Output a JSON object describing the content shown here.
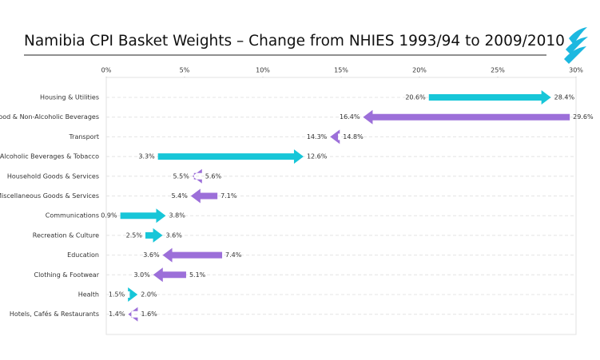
{
  "chart_data": {
    "type": "arrow",
    "title": "Namibia CPI Basket Weights – Change from NHIES 1993/94 to 2009/2010",
    "categories": [
      "Housing & Utilities",
      "Food & Non-Alcoholic Beverages",
      "Transport",
      "Alcoholic Beverages & Tobacco",
      "Household Goods & Services",
      "Miscellaneous Goods & Services",
      "Communications",
      "Recreation & Culture",
      "Education",
      "Clothing & Footwear",
      "Health",
      "Hotels, Cafés & Restaurants"
    ],
    "start": {
      "values": [
        20.6,
        29.6,
        14.8,
        3.3,
        5.6,
        7.1,
        0.9,
        2.5,
        7.4,
        5.1,
        1.5,
        1.6
      ],
      "value_labels": [
        "20.6%",
        "29.6%",
        "14.8%",
        "3.3%",
        "5.6%",
        "7.1%",
        "0.9%",
        "2.5%",
        "7.4%",
        "5.1%",
        "1.5%",
        "1.6%"
      ]
    },
    "end": {
      "values": [
        28.4,
        16.4,
        14.3,
        12.6,
        5.5,
        5.4,
        3.8,
        3.6,
        3.6,
        3.0,
        2.0,
        1.4
      ],
      "value_labels": [
        "28.4%",
        "16.4%",
        "14.3%",
        "12.6%",
        "5.5%",
        "5.4%",
        "3.8%",
        "3.6%",
        "3.6%",
        "3.0%",
        "2.0%",
        "1.4%"
      ]
    },
    "increase_color": "#17c6d8",
    "decrease_color": "#9c6fd9",
    "xlim": [
      0,
      30
    ],
    "xticks": [
      {
        "value": 0,
        "label": "0%"
      },
      {
        "value": 5,
        "label": "5%"
      },
      {
        "value": 10,
        "label": "10%"
      },
      {
        "value": 15,
        "label": "15%"
      },
      {
        "value": 20,
        "label": "20%"
      },
      {
        "value": 25,
        "label": "25%"
      },
      {
        "value": 30,
        "label": "30%"
      }
    ],
    "grid": true
  }
}
